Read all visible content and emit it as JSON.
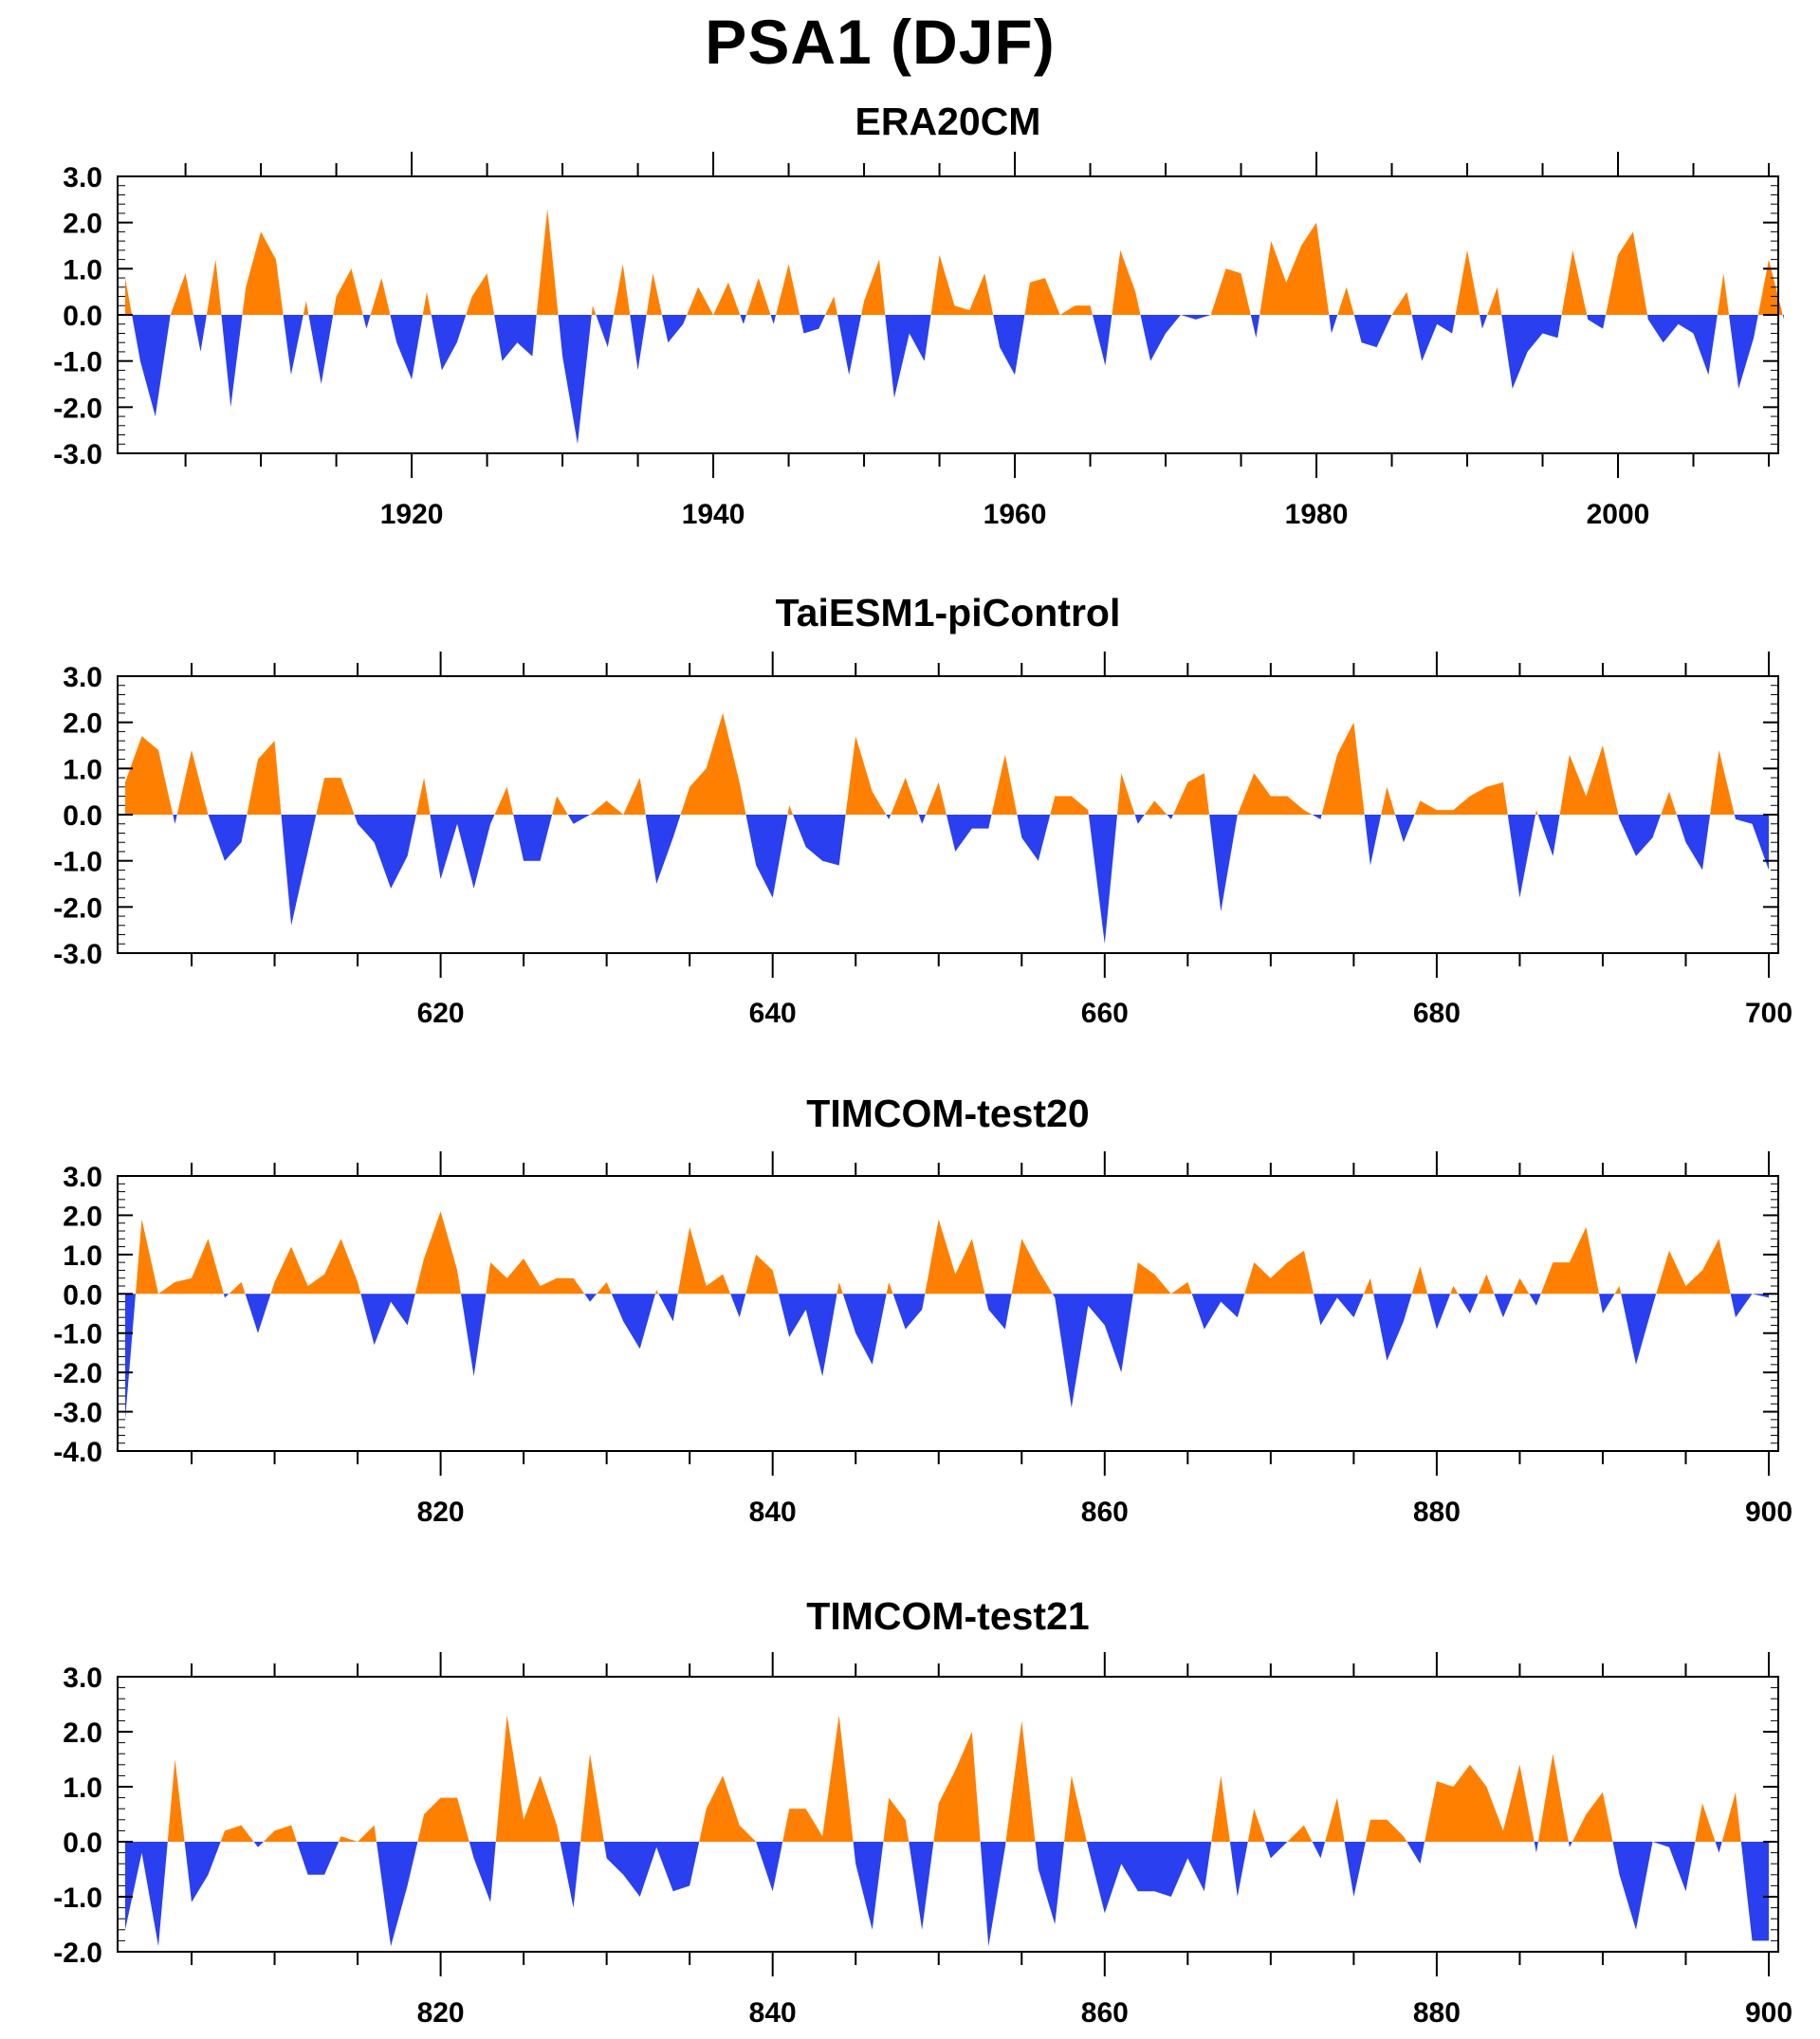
{
  "title": "PSA1 (DJF)",
  "colors": {
    "positive": "#ff8000",
    "negative": "#2a3ff0",
    "axis": "#000000"
  },
  "chart_data": [
    {
      "type": "area",
      "title": "ERA20CM",
      "xlim": [
        1901,
        2010
      ],
      "ylim": [
        -3.0,
        3.0
      ],
      "yticks": [
        "3.0",
        "2.0",
        "1.0",
        "0.0",
        "-1.0",
        "-2.0",
        "-3.0"
      ],
      "xticks": [
        1920,
        1940,
        1960,
        1980,
        2000
      ],
      "x_start": 1901,
      "values": [
        0.8,
        -1.0,
        -2.2,
        0.0,
        0.9,
        -0.8,
        1.2,
        -2.0,
        0.6,
        1.8,
        1.2,
        -1.3,
        0.3,
        -1.5,
        0.4,
        1.0,
        -0.3,
        0.8,
        -0.6,
        -1.4,
        0.5,
        -1.2,
        -0.6,
        0.4,
        0.9,
        -1.0,
        -0.6,
        -0.9,
        2.3,
        -0.9,
        -2.8,
        0.2,
        -0.7,
        1.1,
        -1.2,
        0.9,
        -0.6,
        -0.2,
        0.6,
        0.0,
        0.7,
        -0.2,
        0.8,
        -0.2,
        1.1,
        -0.4,
        -0.3,
        0.4,
        -1.3,
        0.3,
        1.2,
        -1.8,
        -0.4,
        -1.0,
        1.3,
        0.2,
        0.1,
        0.9,
        -0.7,
        -1.3,
        0.7,
        0.8,
        0.0,
        0.2,
        0.2,
        -1.1,
        1.4,
        0.5,
        -1.0,
        -0.4,
        0.0,
        -0.1,
        0.0,
        1.0,
        0.9,
        -0.5,
        1.6,
        0.7,
        1.5,
        2.0,
        -0.4,
        0.6,
        -0.6,
        -0.7,
        0.0,
        0.5,
        -1.0,
        -0.2,
        -0.4,
        1.4,
        -0.3,
        0.6,
        -1.6,
        -0.8,
        -0.4,
        -0.5,
        1.4,
        -0.1,
        -0.3,
        1.3,
        1.8,
        -0.1,
        -0.6,
        -0.2,
        -0.4,
        -1.3,
        0.9,
        -1.6,
        -0.5,
        1.2,
        -0.1
      ]
    },
    {
      "type": "area",
      "title": "TaiESM1-piControl",
      "xlim": [
        601,
        700
      ],
      "ylim": [
        -3.0,
        3.0
      ],
      "yticks": [
        "3.0",
        "2.0",
        "1.0",
        "0.0",
        "-1.0",
        "-2.0",
        "-3.0"
      ],
      "xticks": [
        620,
        640,
        660,
        680,
        700
      ],
      "x_start": 601,
      "values": [
        0.7,
        1.7,
        1.4,
        -0.2,
        1.4,
        0.0,
        -1.0,
        -0.6,
        1.2,
        1.6,
        -2.4,
        -0.8,
        0.8,
        0.8,
        -0.2,
        -0.6,
        -1.6,
        -0.9,
        0.8,
        -1.4,
        -0.2,
        -1.6,
        -0.2,
        0.6,
        -1.0,
        -1.0,
        0.4,
        -0.2,
        0.0,
        0.3,
        0.0,
        0.8,
        -1.5,
        -0.5,
        0.6,
        1.0,
        2.2,
        0.7,
        -1.1,
        -1.8,
        0.2,
        -0.7,
        -1.0,
        -1.1,
        1.7,
        0.5,
        -0.1,
        0.8,
        -0.2,
        0.7,
        -0.8,
        -0.3,
        -0.3,
        1.3,
        -0.5,
        -1.0,
        0.4,
        0.4,
        0.1,
        -2.8,
        0.9,
        -0.2,
        0.3,
        -0.1,
        0.7,
        0.9,
        -2.1,
        0.0,
        0.9,
        0.4,
        0.4,
        0.1,
        -0.1,
        1.3,
        2.0,
        -1.1,
        0.6,
        -0.6,
        0.3,
        0.1,
        0.1,
        0.4,
        0.6,
        0.7,
        -1.8,
        0.1,
        -0.9,
        1.3,
        0.4,
        1.5,
        -0.1,
        -0.9,
        -0.5,
        0.5,
        -0.6,
        -1.2,
        1.4,
        -0.1,
        -0.2,
        -1.2
      ]
    },
    {
      "type": "area",
      "title": "TIMCOM-test20",
      "xlim": [
        801,
        900
      ],
      "ylim": [
        -4.0,
        3.0
      ],
      "yticks": [
        "3.0",
        "2.0",
        "1.0",
        "0.0",
        "-1.0",
        "-2.0",
        "-3.0",
        "-4.0"
      ],
      "xticks": [
        820,
        840,
        860,
        880,
        900
      ],
      "x_start": 801,
      "values": [
        -3.2,
        1.9,
        0.0,
        0.3,
        0.4,
        1.4,
        -0.1,
        0.3,
        -1.0,
        0.3,
        1.2,
        0.2,
        0.5,
        1.4,
        0.3,
        -1.3,
        -0.2,
        -0.8,
        0.9,
        2.1,
        0.6,
        -2.1,
        0.8,
        0.4,
        0.9,
        0.2,
        0.4,
        0.4,
        -0.2,
        0.3,
        -0.7,
        -1.4,
        0.1,
        -0.7,
        1.7,
        0.2,
        0.5,
        -0.6,
        1.0,
        0.6,
        -1.1,
        -0.4,
        -2.1,
        0.3,
        -1.0,
        -1.8,
        0.3,
        -0.9,
        -0.4,
        1.9,
        0.5,
        1.4,
        -0.4,
        -0.9,
        1.4,
        0.6,
        -0.1,
        -2.9,
        -0.3,
        -0.8,
        -2.0,
        0.8,
        0.5,
        0.0,
        0.3,
        -0.9,
        -0.2,
        -0.6,
        0.8,
        0.4,
        0.8,
        1.1,
        -0.8,
        -0.1,
        -0.6,
        0.4,
        -1.7,
        -0.7,
        0.7,
        -0.9,
        0.2,
        -0.5,
        0.5,
        -0.6,
        0.4,
        -0.3,
        0.8,
        0.8,
        1.7,
        -0.5,
        0.2,
        -1.8,
        -0.3,
        1.1,
        0.2,
        0.6,
        1.4,
        -0.6,
        0.0,
        -0.1
      ]
    },
    {
      "type": "area",
      "title": "TIMCOM-test21",
      "xlim": [
        801,
        900
      ],
      "ylim": [
        -2.0,
        3.0
      ],
      "yticks": [
        "3.0",
        "2.0",
        "1.0",
        "0.0",
        "-1.0",
        "-2.0"
      ],
      "xticks": [
        820,
        840,
        860,
        880,
        900
      ],
      "x_start": 801,
      "values": [
        -1.6,
        -0.2,
        -1.9,
        1.5,
        -1.1,
        -0.6,
        0.2,
        0.3,
        -0.1,
        0.2,
        0.3,
        -0.6,
        -0.6,
        0.1,
        0.0,
        0.3,
        -1.9,
        -0.8,
        0.5,
        0.8,
        0.8,
        -0.3,
        -1.1,
        2.3,
        0.4,
        1.2,
        0.3,
        -1.2,
        1.6,
        -0.3,
        -0.6,
        -1.0,
        -0.1,
        -0.9,
        -0.8,
        0.6,
        1.2,
        0.3,
        0.0,
        -0.9,
        0.6,
        0.6,
        0.1,
        2.3,
        -0.4,
        -1.6,
        0.8,
        0.4,
        -1.6,
        0.7,
        1.3,
        2.0,
        -1.9,
        -0.1,
        2.2,
        -0.5,
        -1.5,
        1.2,
        -0.1,
        -1.3,
        -0.4,
        -0.9,
        -0.9,
        -1.0,
        -0.3,
        -0.9,
        1.2,
        -1.0,
        0.6,
        -0.3,
        0.0,
        0.3,
        -0.3,
        0.8,
        -1.0,
        0.4,
        0.4,
        0.1,
        -0.4,
        1.1,
        1.0,
        1.4,
        1.0,
        0.2,
        1.4,
        -0.2,
        1.6,
        -0.1,
        0.5,
        0.9,
        -0.6,
        -1.6,
        0.0,
        -0.1,
        -0.9,
        0.7,
        -0.2,
        0.9,
        -1.8,
        -1.8
      ]
    }
  ]
}
